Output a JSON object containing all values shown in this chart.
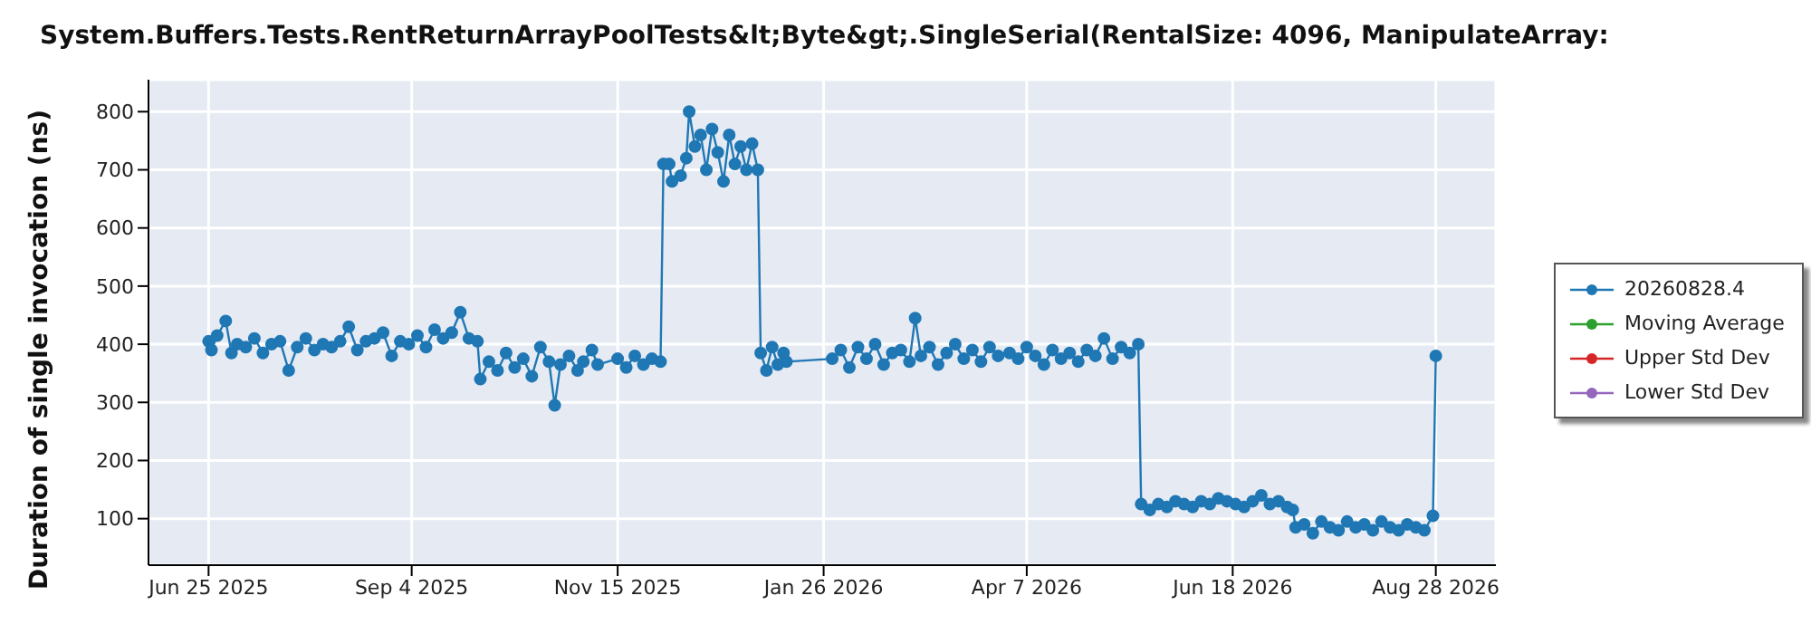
{
  "chart_data": {
    "type": "line",
    "title": "System.Buffers.Tests.RentReturnArrayPoolTests&lt;Byte&gt;.SingleSerial(RentalSize: 4096, ManipulateArray:",
    "ylabel": "Duration of single invocation (ns)",
    "x": [
      "2025-06-25",
      "2025-06-26",
      "2025-06-28",
      "2025-07-01",
      "2025-07-03",
      "2025-07-05",
      "2025-07-08",
      "2025-07-11",
      "2025-07-14",
      "2025-07-17",
      "2025-07-20",
      "2025-07-23",
      "2025-07-26",
      "2025-07-29",
      "2025-08-01",
      "2025-08-04",
      "2025-08-07",
      "2025-08-10",
      "2025-08-13",
      "2025-08-16",
      "2025-08-19",
      "2025-08-22",
      "2025-08-25",
      "2025-08-28",
      "2025-08-31",
      "2025-09-03",
      "2025-09-06",
      "2025-09-09",
      "2025-09-12",
      "2025-09-15",
      "2025-09-18",
      "2025-09-21",
      "2025-09-24",
      "2025-09-27",
      "2025-09-28",
      "2025-10-01",
      "2025-10-04",
      "2025-10-07",
      "2025-10-10",
      "2025-10-13",
      "2025-10-16",
      "2025-10-19",
      "2025-10-22",
      "2025-10-24",
      "2025-10-26",
      "2025-10-29",
      "2025-11-01",
      "2025-11-03",
      "2025-11-06",
      "2025-11-08",
      "2025-11-15",
      "2025-11-18",
      "2025-11-21",
      "2025-11-24",
      "2025-11-27",
      "2025-11-30",
      "2025-12-01",
      "2025-12-03",
      "2025-12-04",
      "2025-12-07",
      "2025-12-09",
      "2025-12-10",
      "2025-12-12",
      "2025-12-14",
      "2025-12-16",
      "2025-12-18",
      "2025-12-20",
      "2025-12-22",
      "2025-12-24",
      "2025-12-26",
      "2025-12-28",
      "2025-12-30",
      "2026-01-01",
      "2026-01-03",
      "2026-01-04",
      "2026-01-06",
      "2026-01-08",
      "2026-01-10",
      "2026-01-12",
      "2026-01-13",
      "2026-01-29",
      "2026-02-01",
      "2026-02-04",
      "2026-02-07",
      "2026-02-10",
      "2026-02-13",
      "2026-02-16",
      "2026-02-19",
      "2026-02-22",
      "2026-02-25",
      "2026-02-27",
      "2026-03-01",
      "2026-03-04",
      "2026-03-07",
      "2026-03-10",
      "2026-03-13",
      "2026-03-16",
      "2026-03-19",
      "2026-03-22",
      "2026-03-25",
      "2026-03-28",
      "2026-04-01",
      "2026-04-04",
      "2026-04-07",
      "2026-04-10",
      "2026-04-13",
      "2026-04-16",
      "2026-04-19",
      "2026-04-22",
      "2026-04-25",
      "2026-04-28",
      "2026-05-01",
      "2026-05-04",
      "2026-05-07",
      "2026-05-10",
      "2026-05-13",
      "2026-05-16",
      "2026-05-17",
      "2026-05-20",
      "2026-05-23",
      "2026-05-26",
      "2026-05-29",
      "2026-06-01",
      "2026-06-04",
      "2026-06-07",
      "2026-06-10",
      "2026-06-13",
      "2026-06-16",
      "2026-06-19",
      "2026-06-22",
      "2026-06-25",
      "2026-06-28",
      "2026-07-01",
      "2026-07-04",
      "2026-07-07",
      "2026-07-09",
      "2026-07-10",
      "2026-07-13",
      "2026-07-16",
      "2026-07-19",
      "2026-07-22",
      "2026-07-25",
      "2026-07-28",
      "2026-07-31",
      "2026-08-03",
      "2026-08-06",
      "2026-08-09",
      "2026-08-12",
      "2026-08-15",
      "2026-08-18",
      "2026-08-21",
      "2026-08-24",
      "2026-08-27",
      "2026-08-28"
    ],
    "series": [
      {
        "name": "20260828.4",
        "color": "#1f77b4",
        "values": [
          405,
          390,
          415,
          440,
          385,
          400,
          395,
          410,
          385,
          400,
          405,
          355,
          395,
          410,
          390,
          400,
          395,
          405,
          430,
          390,
          405,
          410,
          420,
          380,
          405,
          400,
          415,
          395,
          425,
          410,
          420,
          455,
          410,
          405,
          340,
          370,
          355,
          385,
          360,
          375,
          345,
          395,
          370,
          295,
          365,
          380,
          355,
          370,
          390,
          365,
          375,
          360,
          380,
          365,
          375,
          370,
          710,
          710,
          680,
          690,
          720,
          800,
          740,
          760,
          700,
          770,
          730,
          680,
          760,
          710,
          740,
          700,
          745,
          700,
          385,
          355,
          395,
          365,
          385,
          370,
          375,
          390,
          360,
          395,
          375,
          400,
          365,
          385,
          390,
          370,
          445,
          380,
          395,
          365,
          385,
          400,
          375,
          390,
          370,
          395,
          380,
          385,
          375,
          395,
          380,
          365,
          390,
          375,
          385,
          370,
          390,
          380,
          410,
          375,
          395,
          385,
          400,
          125,
          115,
          125,
          120,
          130,
          125,
          120,
          130,
          125,
          135,
          130,
          125,
          120,
          130,
          140,
          125,
          130,
          120,
          115,
          85,
          90,
          75,
          95,
          85,
          80,
          95,
          85,
          90,
          80,
          95,
          85,
          80,
          90,
          85,
          80,
          105,
          380
        ]
      },
      {
        "name": "Moving Average",
        "color": "#2ca02c",
        "values": [
          null,
          null,
          null,
          null,
          null,
          null,
          null,
          null,
          null,
          null,
          null,
          null,
          null,
          null,
          null,
          null,
          null,
          null,
          null,
          null,
          null,
          null,
          null,
          null,
          null,
          null,
          null,
          null,
          null,
          null,
          null,
          null,
          null,
          null,
          null,
          null,
          null,
          null,
          null,
          null,
          null,
          null,
          null,
          null,
          null,
          null,
          null,
          null,
          null,
          null,
          null,
          null,
          null,
          null,
          null,
          null,
          null,
          null,
          null,
          null,
          null,
          null,
          null,
          null,
          null,
          null,
          null,
          null,
          null,
          null,
          null,
          null,
          null,
          null,
          null,
          null,
          null,
          null,
          null,
          null,
          null,
          null,
          null,
          null,
          null,
          null,
          null,
          null,
          null,
          null,
          null,
          null,
          null,
          null,
          null,
          null,
          null,
          null,
          null,
          null,
          null,
          null,
          null,
          null,
          null,
          null,
          null,
          null,
          null,
          null,
          null,
          null,
          null,
          null,
          null,
          null,
          null,
          null,
          null,
          null,
          null,
          null,
          null,
          null,
          null,
          null,
          null,
          null,
          null,
          null,
          null,
          null,
          null,
          null,
          null,
          null,
          null,
          null,
          null,
          null,
          null,
          null,
          null,
          null,
          null,
          null,
          null,
          null,
          null,
          null,
          null,
          null,
          null,
          null
        ]
      },
      {
        "name": "Upper Std Dev",
        "color": "#d62728",
        "values": [
          null,
          null,
          null,
          null,
          null,
          null,
          null,
          null,
          null,
          null,
          null,
          null,
          null,
          null,
          null,
          null,
          null,
          null,
          null,
          null,
          null,
          null,
          null,
          null,
          null,
          null,
          null,
          null,
          null,
          null,
          null,
          null,
          null,
          null,
          null,
          null,
          null,
          null,
          null,
          null,
          null,
          null,
          null,
          null,
          null,
          null,
          null,
          null,
          null,
          null,
          null,
          null,
          null,
          null,
          null,
          null,
          null,
          null,
          null,
          null,
          null,
          null,
          null,
          null,
          null,
          null,
          null,
          null,
          null,
          null,
          null,
          null,
          null,
          null,
          null,
          null,
          null,
          null,
          null,
          null,
          null,
          null,
          null,
          null,
          null,
          null,
          null,
          null,
          null,
          null,
          null,
          null,
          null,
          null,
          null,
          null,
          null,
          null,
          null,
          null,
          null,
          null,
          null,
          null,
          null,
          null,
          null,
          null,
          null,
          null,
          null,
          null,
          null,
          null,
          null,
          null,
          null,
          null,
          null,
          null,
          null,
          null,
          null,
          null,
          null,
          null,
          null,
          null,
          null,
          null,
          null,
          null,
          null,
          null,
          null,
          null,
          null,
          null,
          null,
          null,
          null,
          null,
          null,
          null,
          null,
          null,
          null,
          null,
          null,
          null,
          null,
          null,
          null,
          null
        ]
      },
      {
        "name": "Lower Std Dev",
        "color": "#9467bd",
        "values": [
          null,
          null,
          null,
          null,
          null,
          null,
          null,
          null,
          null,
          null,
          null,
          null,
          null,
          null,
          null,
          null,
          null,
          null,
          null,
          null,
          null,
          null,
          null,
          null,
          null,
          null,
          null,
          null,
          null,
          null,
          null,
          null,
          null,
          null,
          null,
          null,
          null,
          null,
          null,
          null,
          null,
          null,
          null,
          null,
          null,
          null,
          null,
          null,
          null,
          null,
          null,
          null,
          null,
          null,
          null,
          null,
          null,
          null,
          null,
          null,
          null,
          null,
          null,
          null,
          null,
          null,
          null,
          null,
          null,
          null,
          null,
          null,
          null,
          null,
          null,
          null,
          null,
          null,
          null,
          null,
          null,
          null,
          null,
          null,
          null,
          null,
          null,
          null,
          null,
          null,
          null,
          null,
          null,
          null,
          null,
          null,
          null,
          null,
          null,
          null,
          null,
          null,
          null,
          null,
          null,
          null,
          null,
          null,
          null,
          null,
          null,
          null,
          null,
          null,
          null,
          null,
          null,
          null,
          null,
          null,
          null,
          null,
          null,
          null,
          null,
          null,
          null,
          null,
          null,
          null,
          null,
          null,
          null,
          null,
          null,
          null,
          null,
          null,
          null,
          null,
          null,
          null,
          null,
          null,
          null,
          null,
          null,
          null,
          null,
          null,
          null,
          null,
          null,
          null
        ]
      }
    ],
    "xlim": [
      "2025-06-04",
      "2026-09-18"
    ],
    "xticks": [
      {
        "value": "2025-06-25",
        "label": "Jun 25 2025"
      },
      {
        "value": "2025-09-04",
        "label": "Sep 4 2025"
      },
      {
        "value": "2025-11-15",
        "label": "Nov 15 2025"
      },
      {
        "value": "2026-01-26",
        "label": "Jan 26 2026"
      },
      {
        "value": "2026-04-07",
        "label": "Apr 7 2026"
      },
      {
        "value": "2026-06-18",
        "label": "Jun 18 2026"
      },
      {
        "value": "2026-08-28",
        "label": "Aug 28 2026"
      }
    ],
    "ylim": [
      20,
      855
    ],
    "yticks": [
      100,
      200,
      300,
      400,
      500,
      600,
      700,
      800
    ],
    "grid": true,
    "legend": "right",
    "marker": "circle",
    "line_style": "solid"
  }
}
